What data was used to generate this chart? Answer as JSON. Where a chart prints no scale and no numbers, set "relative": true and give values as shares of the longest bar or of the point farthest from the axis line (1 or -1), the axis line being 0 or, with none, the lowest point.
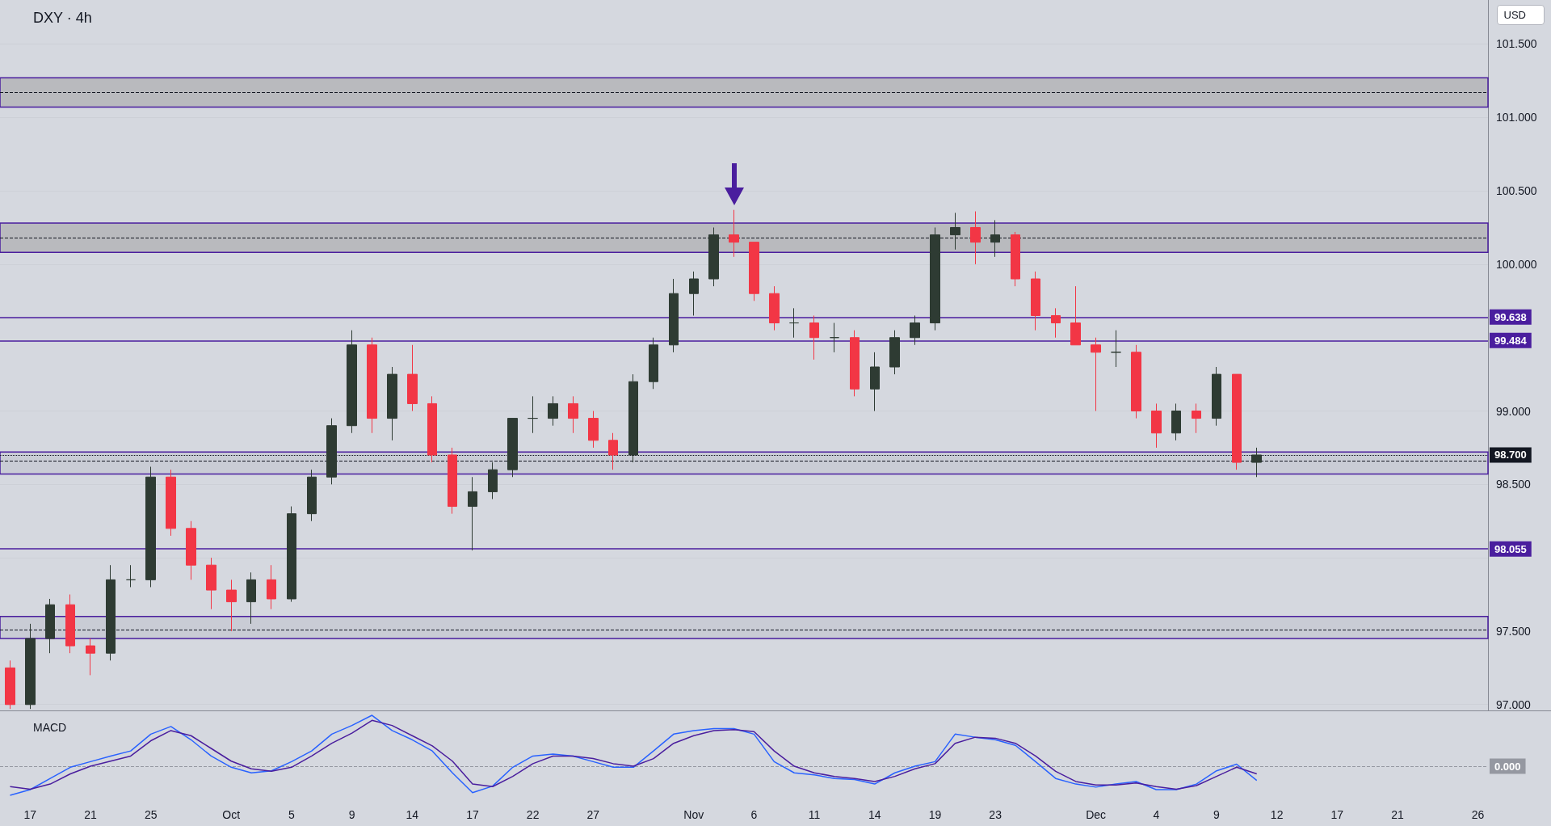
{
  "chart_data": [
    {
      "type": "candlestick",
      "title": "DXY · 4h",
      "annotations": [
        "USD"
      ],
      "categories": [
        null,
        null,
        null,
        null,
        null,
        null,
        null,
        null,
        null,
        null,
        null,
        null,
        null,
        null,
        null,
        null,
        null,
        null,
        null,
        null,
        null,
        null,
        null,
        null,
        null,
        null,
        null,
        null,
        null,
        null,
        null,
        null,
        null,
        null,
        null,
        null,
        null,
        null,
        null,
        null,
        null,
        null,
        null,
        null,
        null,
        null,
        null,
        null,
        null,
        null,
        null,
        null,
        null,
        null,
        null,
        null,
        null,
        null,
        null,
        null,
        null,
        null,
        null,
        null,
        null,
        null,
        null,
        null,
        null,
        null,
        null,
        null,
        null,
        null
      ],
      "ohlc": [
        [
          97.25,
          97.3,
          96.97,
          97.0
        ],
        [
          97.0,
          97.55,
          96.97,
          97.45
        ],
        [
          97.45,
          97.72,
          97.35,
          97.68
        ],
        [
          97.68,
          97.75,
          97.35,
          97.4
        ],
        [
          97.4,
          97.45,
          97.2,
          97.35
        ],
        [
          97.35,
          97.95,
          97.3,
          97.85
        ],
        [
          97.85,
          97.95,
          97.8,
          97.85
        ],
        [
          97.85,
          98.62,
          97.8,
          98.55
        ],
        [
          98.55,
          98.6,
          98.15,
          98.2
        ],
        [
          98.2,
          98.25,
          97.85,
          97.95
        ],
        [
          97.95,
          98.0,
          97.65,
          97.78
        ],
        [
          97.78,
          97.85,
          97.5,
          97.7
        ],
        [
          97.7,
          97.9,
          97.55,
          97.85
        ],
        [
          97.85,
          97.95,
          97.65,
          97.72
        ],
        [
          97.72,
          98.35,
          97.7,
          98.3
        ],
        [
          98.3,
          98.6,
          98.25,
          98.55
        ],
        [
          98.55,
          98.95,
          98.5,
          98.9
        ],
        [
          98.9,
          99.55,
          98.85,
          99.45
        ],
        [
          99.45,
          99.5,
          98.85,
          98.95
        ],
        [
          98.95,
          99.3,
          98.8,
          99.25
        ],
        [
          99.25,
          99.45,
          99.0,
          99.05
        ],
        [
          99.05,
          99.1,
          98.65,
          98.7
        ],
        [
          98.7,
          98.75,
          98.3,
          98.35
        ],
        [
          98.35,
          98.55,
          98.05,
          98.45
        ],
        [
          98.45,
          98.65,
          98.4,
          98.6
        ],
        [
          98.6,
          98.95,
          98.55,
          98.95
        ],
        [
          98.95,
          99.1,
          98.85,
          98.95
        ],
        [
          98.95,
          99.1,
          98.9,
          99.05
        ],
        [
          99.05,
          99.1,
          98.85,
          98.95
        ],
        [
          98.95,
          99.0,
          98.75,
          98.8
        ],
        [
          98.8,
          98.85,
          98.6,
          98.7
        ],
        [
          98.7,
          99.25,
          98.65,
          99.2
        ],
        [
          99.2,
          99.5,
          99.15,
          99.45
        ],
        [
          99.45,
          99.9,
          99.4,
          99.8
        ],
        [
          99.8,
          99.95,
          99.65,
          99.9
        ],
        [
          99.9,
          100.25,
          99.85,
          100.2
        ],
        [
          100.2,
          100.37,
          100.05,
          100.15
        ],
        [
          100.15,
          100.15,
          99.75,
          99.8
        ],
        [
          99.8,
          99.85,
          99.55,
          99.6
        ],
        [
          99.6,
          99.7,
          99.5,
          99.6
        ],
        [
          99.6,
          99.65,
          99.35,
          99.5
        ],
        [
          99.5,
          99.6,
          99.4,
          99.5
        ],
        [
          99.5,
          99.55,
          99.1,
          99.15
        ],
        [
          99.15,
          99.4,
          99.0,
          99.3
        ],
        [
          99.3,
          99.55,
          99.25,
          99.5
        ],
        [
          99.5,
          99.65,
          99.45,
          99.6
        ],
        [
          99.6,
          100.25,
          99.55,
          100.2
        ],
        [
          100.2,
          100.35,
          100.1,
          100.25
        ],
        [
          100.25,
          100.36,
          100.0,
          100.15
        ],
        [
          100.15,
          100.3,
          100.05,
          100.2
        ],
        [
          100.2,
          100.22,
          99.85,
          99.9
        ],
        [
          99.9,
          99.95,
          99.55,
          99.65
        ],
        [
          99.65,
          99.7,
          99.5,
          99.6
        ],
        [
          99.6,
          99.85,
          99.45,
          99.45
        ],
        [
          99.45,
          99.5,
          99.0,
          99.4
        ],
        [
          99.4,
          99.55,
          99.3,
          99.4
        ],
        [
          99.4,
          99.45,
          98.95,
          99.0
        ],
        [
          99.0,
          99.05,
          98.75,
          98.85
        ],
        [
          98.85,
          99.05,
          98.8,
          99.0
        ],
        [
          99.0,
          99.05,
          98.85,
          98.95
        ],
        [
          98.95,
          99.3,
          98.9,
          99.25
        ],
        [
          99.25,
          99.25,
          98.6,
          98.65
        ],
        [
          98.65,
          98.75,
          98.55,
          98.7
        ],
        null,
        null,
        null,
        null,
        null,
        null,
        null,
        null,
        null,
        null,
        null
      ],
      "ylim": [
        96.96,
        101.8
      ],
      "yticks": [
        {
          "value": 97,
          "label": "97.000"
        },
        {
          "value": 97.5,
          "label": "97.500"
        },
        {
          "value": 98,
          "label": null
        },
        {
          "value": 98.5,
          "label": "98.500"
        },
        {
          "value": 99,
          "label": "99.000"
        },
        {
          "value": 100,
          "label": "100.000"
        },
        {
          "value": 100.5,
          "label": "100.500"
        },
        {
          "value": 101,
          "label": "101.000"
        },
        {
          "value": 101.5,
          "label": "101.500"
        }
      ],
      "grid": "y",
      "tick_labels": "y",
      "ref_lines": [
        {
          "axis": "y",
          "value": 99.638,
          "label": "99.638",
          "color": "#4a1e9e"
        },
        {
          "axis": "y",
          "value": 99.484,
          "label": "99.484",
          "color": "#4a1e9e"
        },
        {
          "axis": "y",
          "value": 98.055,
          "label": "98.055",
          "color": "#4a1e9e"
        },
        {
          "axis": "y",
          "value": 98.7,
          "label": "98.700",
          "color": "#131722",
          "line_style": "dotted"
        },
        {
          "axis": "y",
          "value": 101.17,
          "color": "#131722",
          "line_style": "dashed"
        },
        {
          "axis": "y",
          "value": 100.18,
          "color": "#131722",
          "line_style": "dashed"
        },
        {
          "axis": "y",
          "value": 98.66,
          "color": "#131722",
          "line_style": "dashed"
        },
        {
          "axis": "y",
          "value": 97.51,
          "color": "#131722",
          "line_style": "dashed"
        }
      ],
      "bands": [
        {
          "axis": "y",
          "from": 101.07,
          "to": 101.27,
          "color": "#b9babe"
        },
        {
          "axis": "y",
          "from": 100.08,
          "to": 100.28,
          "color": "#b9babe"
        },
        {
          "axis": "y",
          "from": 98.57,
          "to": 98.72,
          "color": "#c9ccd5"
        },
        {
          "axis": "y",
          "from": 97.45,
          "to": 97.6,
          "color": "#c9ccd5"
        }
      ]
    },
    {
      "type": "line",
      "title": "MACD",
      "relative": true,
      "tick_labels": "x",
      "categories": [
        null,
        "17",
        null,
        null,
        "21",
        null,
        null,
        "25",
        null,
        null,
        null,
        "Oct",
        null,
        null,
        "5",
        null,
        null,
        "9",
        null,
        null,
        "14",
        null,
        null,
        "17",
        null,
        null,
        "22",
        null,
        null,
        "27",
        null,
        null,
        null,
        null,
        "Nov",
        null,
        null,
        "6",
        null,
        null,
        "11",
        null,
        null,
        "14",
        null,
        null,
        "19",
        null,
        null,
        "23",
        null,
        null,
        null,
        null,
        "Dec",
        null,
        null,
        "4",
        null,
        null,
        "9",
        null,
        null,
        "12",
        null,
        null,
        "17",
        null,
        null,
        "21",
        null,
        null,
        null,
        "26"
      ],
      "series": [
        {
          "color": "#2962ff",
          "values": [
            -0.57,
            -0.46,
            -0.24,
            -0.02,
            0.09,
            0.2,
            0.3,
            0.63,
            0.78,
            0.52,
            0.2,
            -0.02,
            -0.13,
            -0.09,
            0.09,
            0.3,
            0.63,
            0.8,
            1.0,
            0.7,
            0.52,
            0.3,
            -0.13,
            -0.52,
            -0.39,
            -0.02,
            0.2,
            0.24,
            0.2,
            0.09,
            -0.02,
            -0.02,
            0.3,
            0.63,
            0.7,
            0.74,
            0.74,
            0.63,
            0.09,
            -0.13,
            -0.17,
            -0.24,
            -0.26,
            -0.35,
            -0.13,
            0.0,
            0.09,
            0.63,
            0.57,
            0.52,
            0.41,
            0.09,
            -0.24,
            -0.35,
            -0.41,
            -0.35,
            -0.3,
            -0.46,
            -0.46,
            -0.35,
            -0.09,
            0.04,
            -0.28,
            null,
            null,
            null,
            null,
            null,
            null,
            null,
            null,
            null,
            null,
            null
          ]
        },
        {
          "color": "#4a1e9e",
          "values": [
            -0.4,
            -0.45,
            -0.35,
            -0.15,
            0.0,
            0.1,
            0.2,
            0.5,
            0.7,
            0.6,
            0.35,
            0.1,
            -0.05,
            -0.1,
            -0.02,
            0.2,
            0.45,
            0.65,
            0.9,
            0.8,
            0.6,
            0.4,
            0.1,
            -0.35,
            -0.4,
            -0.2,
            0.05,
            0.2,
            0.2,
            0.15,
            0.05,
            0.0,
            0.15,
            0.45,
            0.6,
            0.7,
            0.72,
            0.68,
            0.3,
            0.0,
            -0.13,
            -0.2,
            -0.24,
            -0.3,
            -0.2,
            -0.05,
            0.05,
            0.45,
            0.57,
            0.55,
            0.45,
            0.2,
            -0.1,
            -0.3,
            -0.37,
            -0.37,
            -0.33,
            -0.4,
            -0.45,
            -0.38,
            -0.2,
            -0.02,
            -0.15,
            null,
            null,
            null,
            null,
            null,
            null,
            null,
            null,
            null,
            null,
            null
          ]
        }
      ],
      "ref_lines": [
        {
          "axis": "y",
          "value": 0,
          "label": "0.000",
          "color": "#9598a1",
          "line_style": "dashed"
        }
      ]
    }
  ]
}
